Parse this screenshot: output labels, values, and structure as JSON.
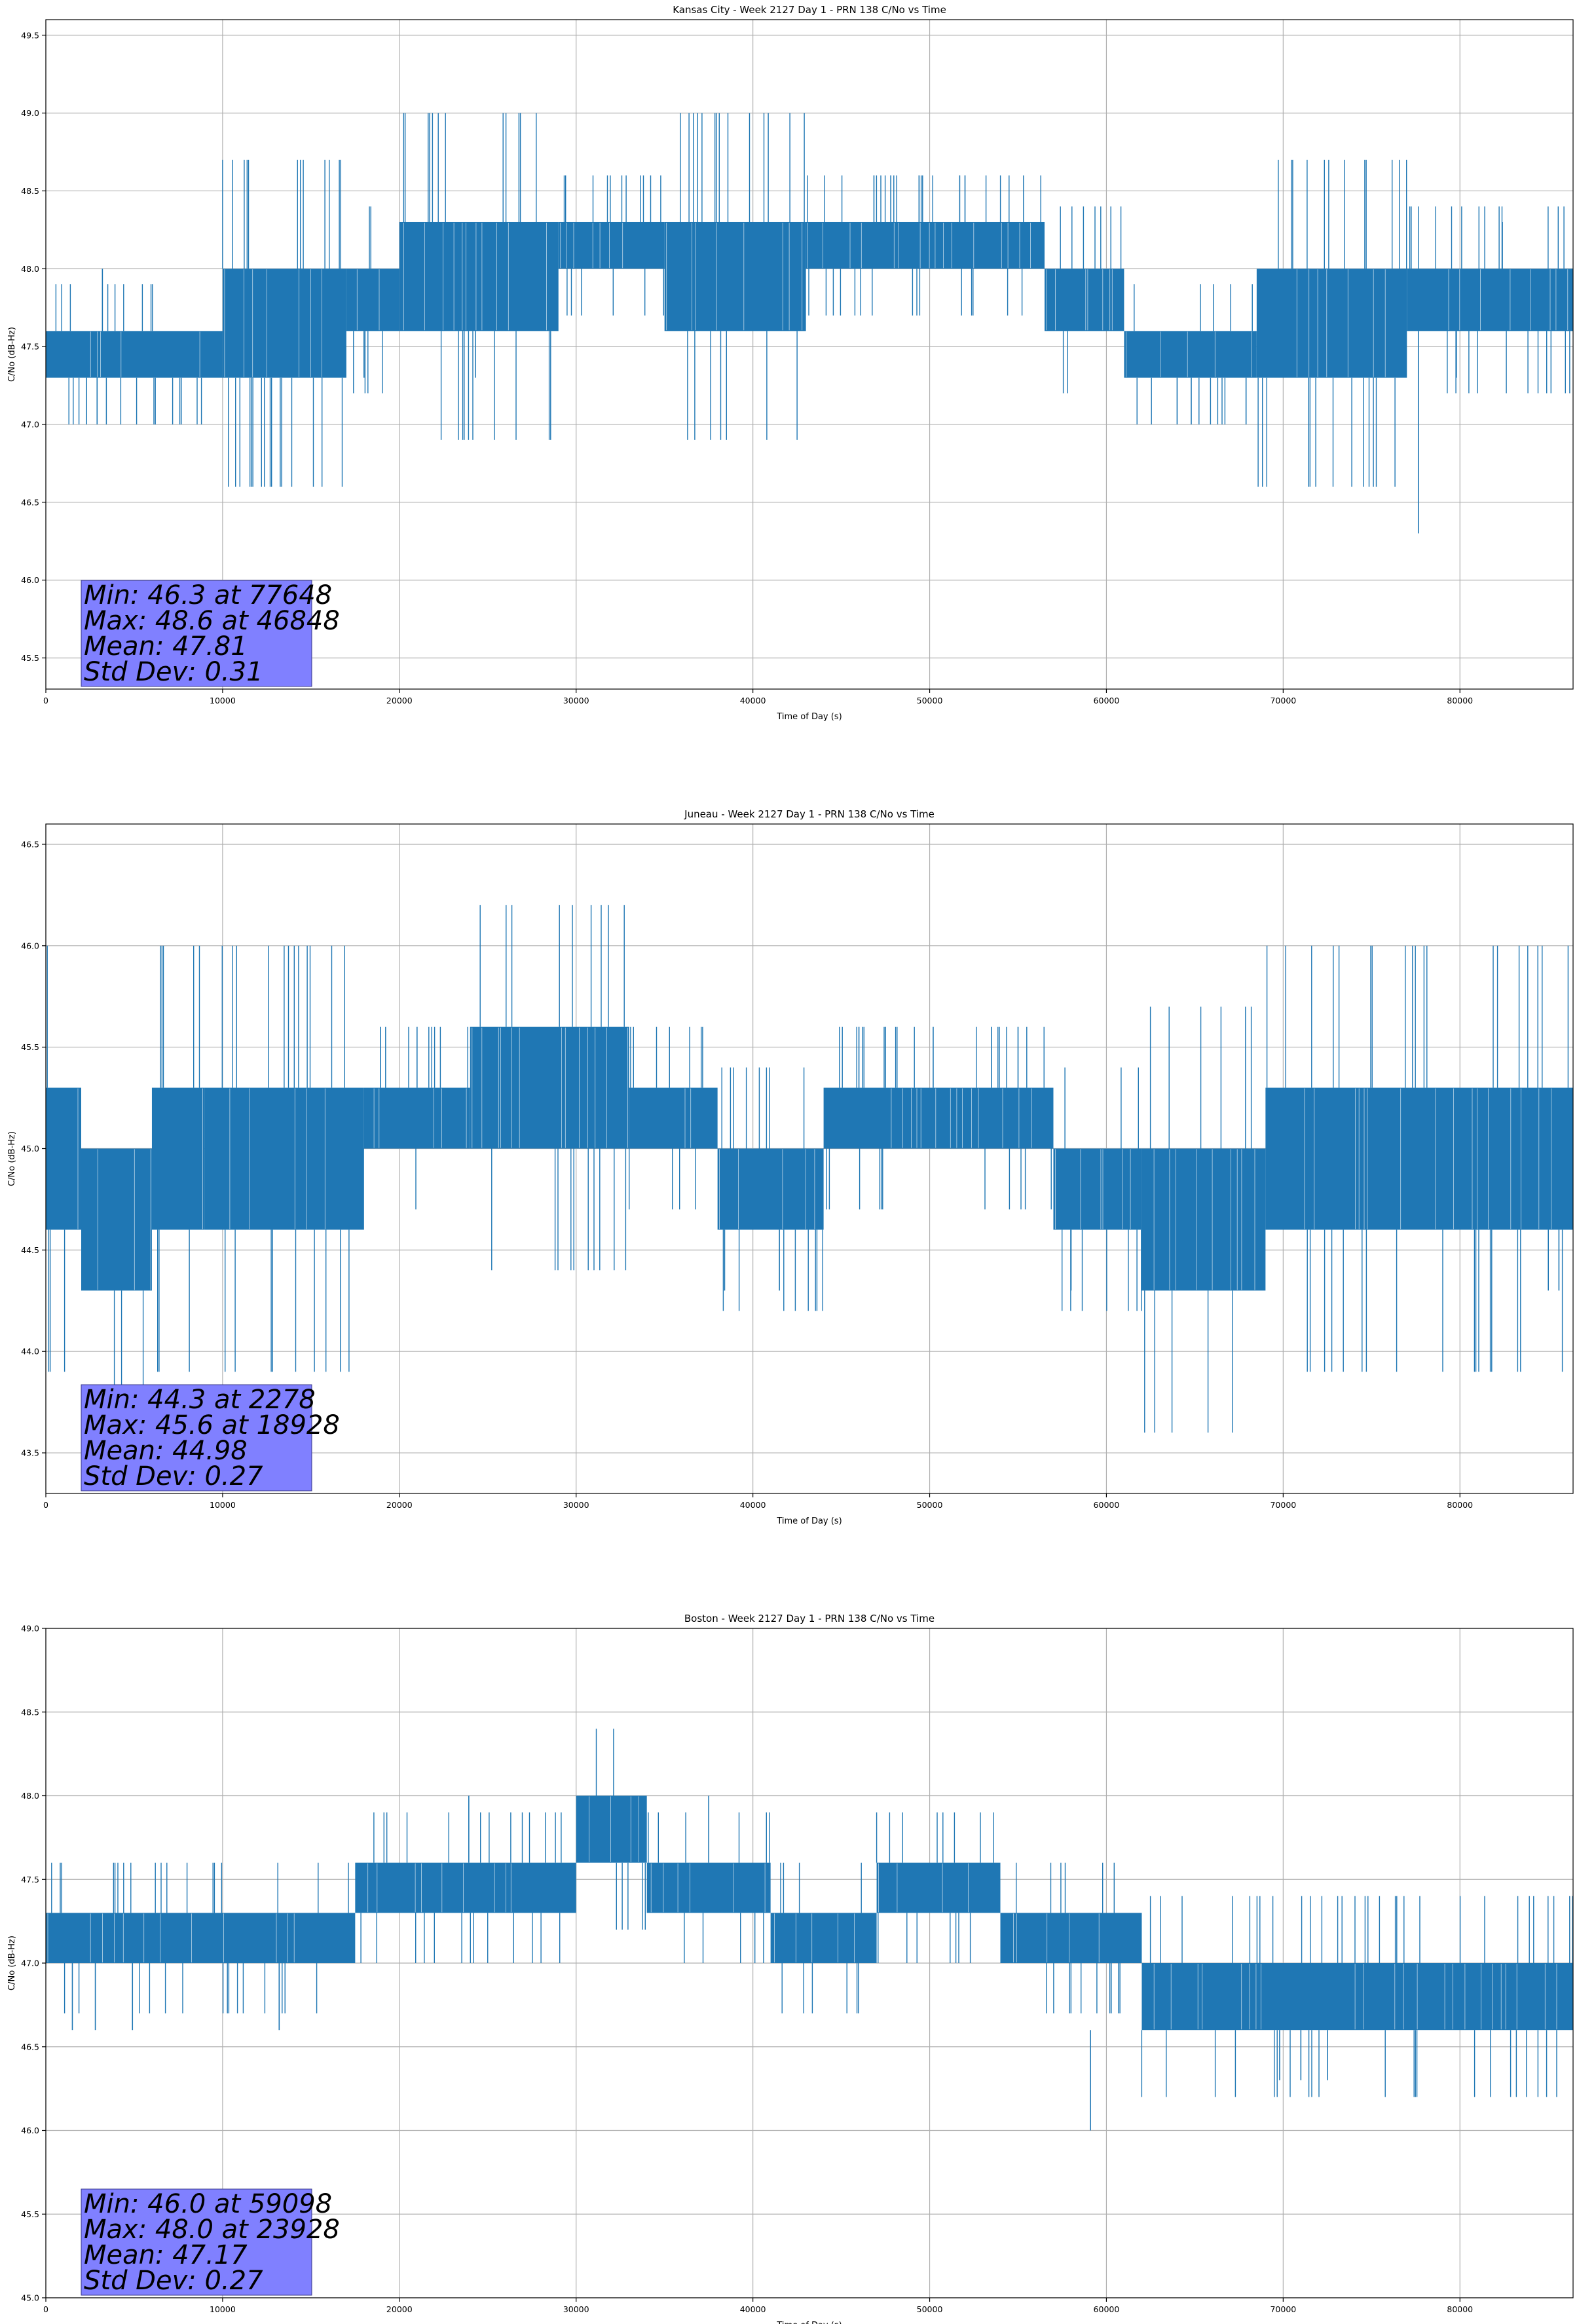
{
  "colors": {
    "series": "#1f77b4",
    "stats_box": "#8080ff",
    "grid": "#b0b0b0"
  },
  "chart_data": [
    {
      "type": "line",
      "title": "Kansas City - Week 2127 Day 1 - PRN 138 C/No vs Time",
      "xlabel": "Time of Day (s)",
      "ylabel": "C/No (dB-Hz)",
      "xlim": [
        0,
        86400
      ],
      "ylim": [
        45.3,
        49.6
      ],
      "xticks": [
        0,
        10000,
        20000,
        30000,
        40000,
        50000,
        60000,
        70000,
        80000
      ],
      "yticks": [
        45.5,
        46.0,
        46.5,
        47.0,
        47.5,
        48.0,
        48.5,
        49.0,
        49.5
      ],
      "grid": true,
      "stats": [
        "Min: 46.3 at 77648",
        "Max: 48.6 at 46848",
        "Mean: 47.81",
        "Std Dev: 0.31"
      ],
      "series": [
        {
          "segments": [
            {
              "x": [
                0,
                10000
              ],
              "low": 47.3,
              "high": 47.6
            },
            {
              "x": [
                10000,
                17000
              ],
              "low": 47.3,
              "high": 48.0
            },
            {
              "x": [
                17000,
                20000
              ],
              "low": 47.6,
              "high": 48.0
            },
            {
              "x": [
                20000,
                29000
              ],
              "low": 47.6,
              "high": 48.3
            },
            {
              "x": [
                29000,
                35000
              ],
              "low": 48.0,
              "high": 48.3
            },
            {
              "x": [
                35000,
                43000
              ],
              "low": 47.6,
              "high": 48.3
            },
            {
              "x": [
                43000,
                56500
              ],
              "low": 48.0,
              "high": 48.3
            },
            {
              "x": [
                56500,
                61000
              ],
              "low": 47.6,
              "high": 48.0
            },
            {
              "x": [
                61000,
                68500
              ],
              "low": 47.3,
              "high": 47.6
            },
            {
              "x": [
                68500,
                77000
              ],
              "low": 47.3,
              "high": 48.0
            },
            {
              "x": [
                77000,
                86400
              ],
              "low": 47.6,
              "high": 48.0
            }
          ],
          "spikes": [
            {
              "x": 2300,
              "low": 47.0,
              "high": 47.3
            },
            {
              "x": 2900,
              "low": 47.0,
              "high": 47.3
            },
            {
              "x": 3200,
              "low": 47.6,
              "high": 48.0
            },
            {
              "x": 18000,
              "low": 47.3,
              "high": 47.6
            },
            {
              "x": 24300,
              "low": 47.3,
              "high": 47.6
            },
            {
              "x": 46848,
              "low": 48.3,
              "high": 48.6
            },
            {
              "x": 47800,
              "low": 48.3,
              "high": 48.6
            },
            {
              "x": 49400,
              "low": 48.3,
              "high": 48.6
            },
            {
              "x": 51700,
              "low": 48.3,
              "high": 48.6
            },
            {
              "x": 52000,
              "low": 48.3,
              "high": 48.6
            },
            {
              "x": 64000,
              "low": 47.0,
              "high": 47.3
            },
            {
              "x": 64800,
              "low": 47.0,
              "high": 47.3
            },
            {
              "x": 67900,
              "low": 47.0,
              "high": 47.3
            },
            {
              "x": 77648,
              "low": 46.3,
              "high": 47.6
            },
            {
              "x": 79800,
              "low": 47.3,
              "high": 47.6
            },
            {
              "x": 82400,
              "low": 48.0,
              "high": 48.3
            }
          ]
        }
      ]
    },
    {
      "type": "line",
      "title": "Juneau - Week 2127 Day 1 - PRN 138 C/No vs Time",
      "xlabel": "Time of Day (s)",
      "ylabel": "C/No (dB-Hz)",
      "xlim": [
        0,
        86400
      ],
      "ylim": [
        43.3,
        46.6
      ],
      "xticks": [
        0,
        10000,
        20000,
        30000,
        40000,
        50000,
        60000,
        70000,
        80000
      ],
      "yticks": [
        43.5,
        44.0,
        44.5,
        45.0,
        45.5,
        46.0,
        46.5
      ],
      "grid": true,
      "stats": [
        "Min: 44.3 at 2278",
        "Max: 45.6 at 18928",
        "Mean: 44.98",
        "Std Dev: 0.27"
      ],
      "series": [
        {
          "segments": [
            {
              "x": [
                0,
                2000
              ],
              "low": 44.6,
              "high": 45.3
            },
            {
              "x": [
                2000,
                6000
              ],
              "low": 44.3,
              "high": 45.0
            },
            {
              "x": [
                6000,
                9000
              ],
              "low": 44.6,
              "high": 45.3
            },
            {
              "x": [
                9000,
                18000
              ],
              "low": 44.6,
              "high": 45.3
            },
            {
              "x": [
                18000,
                24000
              ],
              "low": 45.0,
              "high": 45.3
            },
            {
              "x": [
                24000,
                33000
              ],
              "low": 45.0,
              "high": 45.6
            },
            {
              "x": [
                33000,
                38000
              ],
              "low": 45.0,
              "high": 45.3
            },
            {
              "x": [
                38000,
                44000
              ],
              "low": 44.6,
              "high": 45.0
            },
            {
              "x": [
                44000,
                57000
              ],
              "low": 45.0,
              "high": 45.3
            },
            {
              "x": [
                57000,
                62000
              ],
              "low": 44.6,
              "high": 45.0
            },
            {
              "x": [
                62000,
                69000
              ],
              "low": 44.3,
              "high": 45.0
            },
            {
              "x": [
                69000,
                86400
              ],
              "low": 44.6,
              "high": 45.3
            }
          ],
          "spikes": [
            {
              "x": 18928,
              "low": 45.3,
              "high": 45.6
            },
            {
              "x": 21000,
              "low": 45.3,
              "high": 45.6
            },
            {
              "x": 46000,
              "low": 45.3,
              "high": 45.6
            },
            {
              "x": 47500,
              "low": 45.3,
              "high": 45.6
            },
            {
              "x": 50200,
              "low": 45.3,
              "high": 45.6
            },
            {
              "x": 53500,
              "low": 45.3,
              "high": 45.6
            },
            {
              "x": 55000,
              "low": 45.3,
              "high": 45.6
            },
            {
              "x": 38400,
              "low": 44.3,
              "high": 44.6
            },
            {
              "x": 41500,
              "low": 44.3,
              "high": 44.6
            },
            {
              "x": 58000,
              "low": 44.3,
              "high": 44.6
            },
            {
              "x": 85000,
              "low": 44.3,
              "high": 44.6
            },
            {
              "x": 85600,
              "low": 44.3,
              "high": 44.6
            }
          ]
        }
      ]
    },
    {
      "type": "line",
      "title": "Boston - Week 2127 Day 1 - PRN 138 C/No vs Time",
      "xlabel": "Time of Day (s)",
      "ylabel": "C/No (dB-Hz)",
      "xlim": [
        0,
        86400
      ],
      "ylim": [
        45.0,
        49.0
      ],
      "xticks": [
        0,
        10000,
        20000,
        30000,
        40000,
        50000,
        60000,
        70000,
        80000
      ],
      "yticks": [
        45.0,
        45.5,
        46.0,
        46.5,
        47.0,
        47.5,
        48.0,
        48.5,
        49.0
      ],
      "grid": true,
      "stats": [
        "Min: 46.0 at 59098",
        "Max: 48.0 at 23928",
        "Mean: 47.17",
        "Std Dev: 0.27"
      ],
      "series": [
        {
          "segments": [
            {
              "x": [
                0,
                17500
              ],
              "low": 47.0,
              "high": 47.3
            },
            {
              "x": [
                17500,
                30000
              ],
              "low": 47.3,
              "high": 47.6
            },
            {
              "x": [
                30000,
                34000
              ],
              "low": 47.6,
              "high": 48.0
            },
            {
              "x": [
                34000,
                41000
              ],
              "low": 47.3,
              "high": 47.6
            },
            {
              "x": [
                41000,
                47000
              ],
              "low": 47.0,
              "high": 47.3
            },
            {
              "x": [
                47000,
                54000
              ],
              "low": 47.3,
              "high": 47.6
            },
            {
              "x": [
                54000,
                62000
              ],
              "low": 47.0,
              "high": 47.3
            },
            {
              "x": [
                62000,
                86400
              ],
              "low": 46.6,
              "high": 47.0
            }
          ],
          "spikes": [
            {
              "x": 23928,
              "low": 47.6,
              "high": 48.0
            },
            {
              "x": 37500,
              "low": 47.6,
              "high": 48.0
            },
            {
              "x": 1500,
              "low": 46.6,
              "high": 47.0
            },
            {
              "x": 2800,
              "low": 46.6,
              "high": 47.0
            },
            {
              "x": 4900,
              "low": 46.6,
              "high": 47.0
            },
            {
              "x": 13200,
              "low": 46.6,
              "high": 47.0
            },
            {
              "x": 59098,
              "low": 46.0,
              "high": 46.6
            },
            {
              "x": 69800,
              "low": 46.3,
              "high": 46.6
            },
            {
              "x": 71000,
              "low": 46.3,
              "high": 46.6
            },
            {
              "x": 72500,
              "low": 46.3,
              "high": 46.6
            }
          ]
        }
      ]
    }
  ]
}
